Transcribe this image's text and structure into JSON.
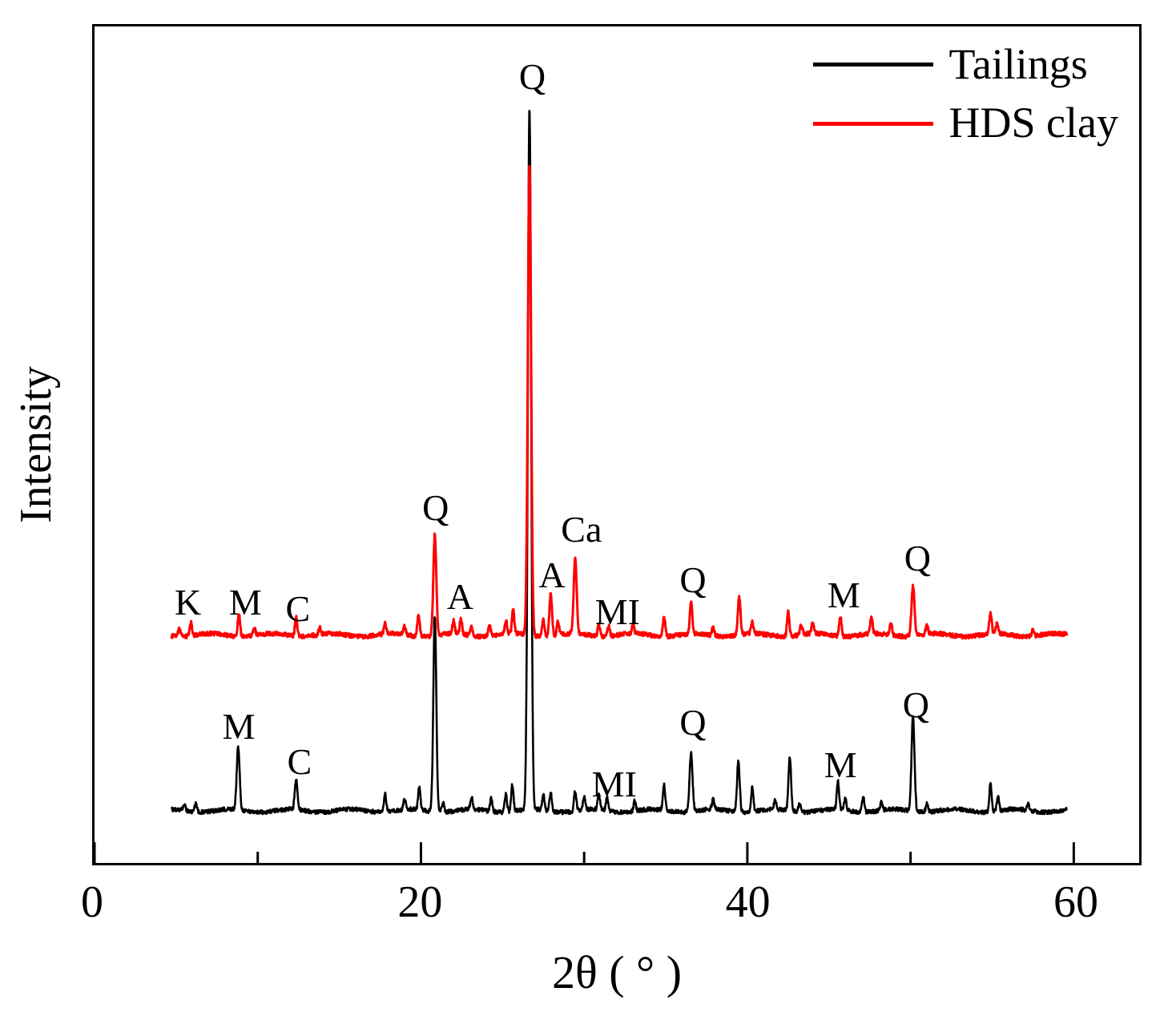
{
  "chart_data": {
    "type": "line",
    "title": "",
    "xlabel": "2θ ( ° )",
    "ylabel": "Intensity",
    "xlim": [
      0,
      60
    ],
    "ylim": [
      0,
      100
    ],
    "x_ticks": [
      0,
      20,
      40,
      60
    ],
    "x_minor_ticks": [
      10,
      30,
      50
    ],
    "x_range_drawn": [
      4.7,
      59.6
    ],
    "grid": false,
    "legend_position": "top-right",
    "series": [
      {
        "name": "Tailings",
        "color": "#000000",
        "baseline": 6.0,
        "peaks": [
          [
            5.5,
            0.8
          ],
          [
            6.2,
            1.1
          ],
          [
            8.8,
            7.5,
            0.09
          ],
          [
            12.35,
            3.6,
            0.08
          ],
          [
            17.8,
            2.2
          ],
          [
            19.0,
            1.2
          ],
          [
            19.9,
            2.8
          ],
          [
            20.85,
            23.5,
            0.09
          ],
          [
            21.35,
            1.2
          ],
          [
            23.1,
            1.5
          ],
          [
            24.3,
            1.5
          ],
          [
            25.2,
            2.2
          ],
          [
            25.6,
            3.2
          ],
          [
            26.65,
            84,
            0.1
          ],
          [
            27.5,
            1.8
          ],
          [
            27.95,
            2.2
          ],
          [
            29.45,
            2.4
          ],
          [
            30.0,
            1.5
          ],
          [
            30.9,
            1.8
          ],
          [
            31.4,
            1.5
          ],
          [
            33.1,
            1.2
          ],
          [
            34.9,
            3.0
          ],
          [
            36.55,
            7.0,
            0.09
          ],
          [
            37.9,
            1.2
          ],
          [
            39.45,
            6.2,
            0.08
          ],
          [
            40.3,
            3.0
          ],
          [
            41.7,
            1.2
          ],
          [
            42.6,
            6.5,
            0.08
          ],
          [
            43.2,
            1.0
          ],
          [
            45.55,
            3.4
          ],
          [
            46.0,
            1.4
          ],
          [
            47.1,
            1.8
          ],
          [
            48.2,
            1.0
          ],
          [
            50.15,
            11.5,
            0.09
          ],
          [
            51.0,
            1.0
          ],
          [
            54.9,
            3.4
          ],
          [
            55.35,
            1.8
          ],
          [
            57.2,
            0.8
          ]
        ]
      },
      {
        "name": "HDS clay",
        "color": "#ff0000",
        "baseline": 27.0,
        "peaks": [
          [
            5.2,
            1.0
          ],
          [
            5.9,
            1.6
          ],
          [
            8.85,
            2.6
          ],
          [
            9.8,
            0.8
          ],
          [
            12.35,
            2.2
          ],
          [
            13.8,
            0.8
          ],
          [
            17.8,
            1.2
          ],
          [
            19.0,
            1.0
          ],
          [
            19.85,
            2.6
          ],
          [
            20.85,
            12.0,
            0.09
          ],
          [
            22.0,
            1.5
          ],
          [
            22.45,
            1.8
          ],
          [
            23.1,
            1.0
          ],
          [
            24.2,
            1.4
          ],
          [
            25.2,
            1.6
          ],
          [
            25.65,
            2.8
          ],
          [
            26.65,
            56.5,
            0.1
          ],
          [
            27.5,
            2.0
          ],
          [
            27.95,
            5.0,
            0.08
          ],
          [
            28.4,
            1.6
          ],
          [
            29.45,
            9.0,
            0.09
          ],
          [
            30.9,
            1.4
          ],
          [
            31.5,
            1.2
          ],
          [
            33.0,
            1.0
          ],
          [
            34.9,
            2.4
          ],
          [
            36.55,
            4.0
          ],
          [
            37.9,
            1.0
          ],
          [
            39.5,
            4.6,
            0.08
          ],
          [
            40.3,
            1.4
          ],
          [
            42.5,
            3.0
          ],
          [
            43.3,
            1.2
          ],
          [
            44.0,
            1.2
          ],
          [
            45.7,
            2.4
          ],
          [
            47.6,
            2.0
          ],
          [
            48.8,
            1.4
          ],
          [
            50.15,
            6.0,
            0.09
          ],
          [
            51.0,
            1.0
          ],
          [
            54.9,
            2.6
          ],
          [
            55.3,
            1.2
          ],
          [
            57.5,
            0.8
          ]
        ]
      }
    ],
    "peak_labels": [
      {
        "text": "K",
        "x": 5.7,
        "y": 31.5,
        "series": "HDS clay"
      },
      {
        "text": "M",
        "x": 9.2,
        "y": 31.5,
        "series": "HDS clay"
      },
      {
        "text": "C",
        "x": 12.4,
        "y": 30.8,
        "series": "HDS clay"
      },
      {
        "text": "Q",
        "x": 20.8,
        "y": 42.8,
        "series": "HDS clay"
      },
      {
        "text": "A",
        "x": 22.3,
        "y": 32.2,
        "series": "HDS clay"
      },
      {
        "text": "Q",
        "x": 26.7,
        "y": 94.0,
        "series": "both"
      },
      {
        "text": "A",
        "x": 27.9,
        "y": 34.8,
        "series": "HDS clay"
      },
      {
        "text": "Ca",
        "x": 29.7,
        "y": 40.2,
        "series": "HDS clay"
      },
      {
        "text": "MI",
        "x": 31.9,
        "y": 30.4,
        "series": "HDS clay"
      },
      {
        "text": "Q",
        "x": 36.5,
        "y": 34.2,
        "series": "HDS clay"
      },
      {
        "text": "M",
        "x": 45.7,
        "y": 32.4,
        "series": "HDS clay"
      },
      {
        "text": "Q",
        "x": 50.2,
        "y": 36.8,
        "series": "HDS clay"
      },
      {
        "text": "M",
        "x": 8.8,
        "y": 16.8,
        "series": "Tailings"
      },
      {
        "text": "C",
        "x": 12.5,
        "y": 12.6,
        "series": "Tailings"
      },
      {
        "text": "MI",
        "x": 31.7,
        "y": 9.9,
        "series": "Tailings"
      },
      {
        "text": "Q",
        "x": 36.5,
        "y": 17.2,
        "series": "Tailings"
      },
      {
        "text": "M",
        "x": 45.5,
        "y": 12.2,
        "series": "Tailings"
      },
      {
        "text": "Q",
        "x": 50.1,
        "y": 19.3,
        "series": "Tailings"
      }
    ]
  },
  "legend": {
    "items": [
      {
        "label": "Tailings",
        "color": "#000000"
      },
      {
        "label": "HDS clay",
        "color": "#ff0000"
      }
    ]
  }
}
